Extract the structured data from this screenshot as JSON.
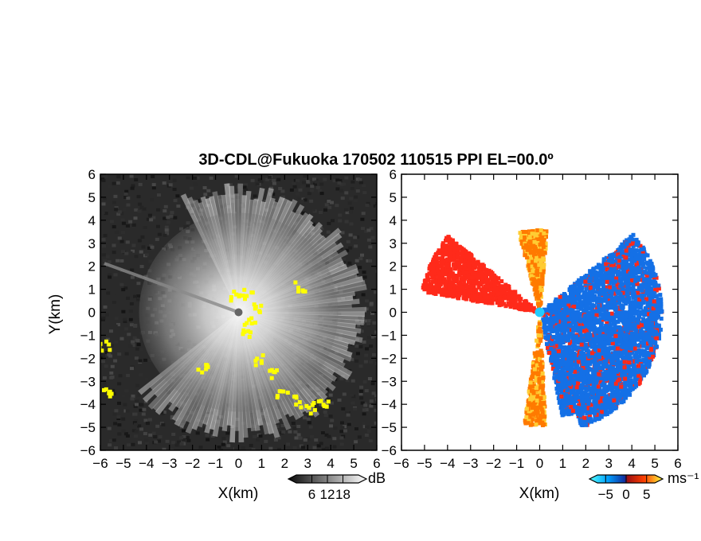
{
  "title": "3D-CDL@Fukuoka 170502 110515 PPI EL=00.0º",
  "colors": {
    "intensity_low": "#0e0e0e",
    "intensity_high": "#f2f2f2",
    "overlay": "#ffff00",
    "velocity_negative": "#1470e6",
    "velocity_positive": "#ff7a00",
    "velocity_strong_positive": "#ff2a1a",
    "radar_center_marker": "#22ccff"
  },
  "chart_data": [
    {
      "type": "heatmap",
      "name": "intensity",
      "xlabel": "X(km)",
      "ylabel": "Y(km)",
      "xlim": [
        -6,
        6
      ],
      "ylim": [
        -6,
        6
      ],
      "xticks": [
        "−6",
        "−5",
        "−4",
        "−3",
        "−2",
        "−1",
        "0",
        "1",
        "2",
        "3",
        "4",
        "5",
        "6"
      ],
      "yticks": [
        "6",
        "5",
        "4",
        "3",
        "2",
        "1",
        "0",
        "−1",
        "−2",
        "−3",
        "−4",
        "−5",
        "−6"
      ],
      "colorbar": {
        "unit": "dB",
        "ticks": [
          "6",
          "12",
          "18"
        ],
        "range": [
          0,
          24
        ]
      },
      "dark_sector_azimuths_deg": [
        [
          115,
          218
        ]
      ],
      "overlay_regions": [
        {
          "description": "yellow echo band",
          "points_km": [
            [
              -0.2,
              0.8
            ],
            [
              0.3,
              0.9
            ],
            [
              0.7,
              0.3
            ],
            [
              0.4,
              -0.4
            ],
            [
              0.2,
              -0.9
            ],
            [
              0.9,
              -2.0
            ],
            [
              1.4,
              -2.6
            ],
            [
              1.8,
              -3.4
            ],
            [
              2.4,
              -3.8
            ],
            [
              3.0,
              -4.1
            ],
            [
              3.6,
              -3.8
            ]
          ]
        },
        {
          "description": "yellow edge patches",
          "points_km": [
            [
              -5.9,
              -1.4
            ],
            [
              -5.8,
              -3.4
            ],
            [
              -1.6,
              -2.3
            ],
            [
              2.6,
              1.2
            ]
          ]
        }
      ]
    },
    {
      "type": "heatmap",
      "name": "radial velocity",
      "xlabel": "X(km)",
      "ylabel": "",
      "xlim": [
        -6,
        6
      ],
      "ylim": [
        -6,
        6
      ],
      "xticks": [
        "−6",
        "−5",
        "−4",
        "−3",
        "−2",
        "−1",
        "0",
        "1",
        "2",
        "3",
        "4",
        "5",
        "6"
      ],
      "yticks": [
        "6",
        "5",
        "4",
        "3",
        "2",
        "1",
        "0",
        "−1",
        "−2",
        "−3",
        "−4",
        "−5",
        "−6"
      ],
      "colorbar": {
        "unit": "ms⁻¹",
        "ticks": [
          "−5",
          "0",
          "5"
        ],
        "range": [
          -7,
          7
        ]
      },
      "coverage": [
        {
          "sign": "negative",
          "azimuths_deg": [
            -70,
            40
          ],
          "max_range_km": 5.3
        },
        {
          "sign": "negative",
          "azimuths_deg": [
            -78,
            -70
          ],
          "max_range_km": 4.6
        },
        {
          "sign": "positive",
          "azimuths_deg": [
            85,
            105
          ],
          "max_range_km": 3.6
        },
        {
          "sign": "positive",
          "azimuths_deg": [
            -98,
            -87
          ],
          "max_range_km": 4.9
        },
        {
          "sign": "strong_positive",
          "azimuths_deg": [
            140,
            170
          ],
          "max_range_km": 5.2
        }
      ]
    }
  ]
}
